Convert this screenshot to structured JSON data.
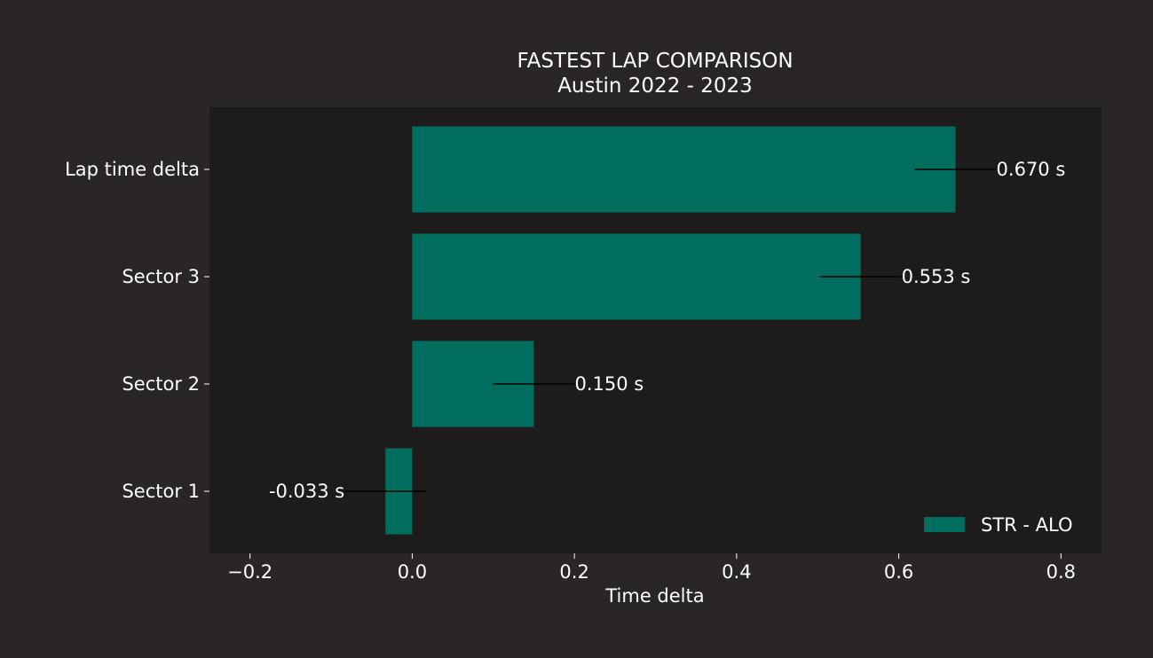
{
  "chart_data": {
    "type": "bar",
    "orientation": "horizontal",
    "title": "FASTEST LAP COMPARISON",
    "subtitle": "Austin 2022 - 2023",
    "xlabel": "Time delta",
    "ylabel": "",
    "categories": [
      "Sector 1",
      "Sector 2",
      "Sector 3",
      "Lap time delta"
    ],
    "series": [
      {
        "name": "STR - ALO",
        "values": [
          -0.033,
          0.15,
          0.553,
          0.67
        ],
        "labels": [
          "-0.033 s",
          "0.150 s",
          "0.553 s",
          "0.670 s"
        ]
      }
    ],
    "xlim": [
      -0.25,
      0.85
    ],
    "xticks": [
      -0.2,
      0.0,
      0.2,
      0.4,
      0.6,
      0.8
    ],
    "xtick_labels": [
      "−0.2",
      "0.0",
      "0.2",
      "0.4",
      "0.6",
      "0.8"
    ],
    "grid": false,
    "legend": "bottom-right",
    "colors": {
      "figure_bg": "#292625",
      "axes_bg": "#1e1c1b",
      "bar": "#006e5f",
      "text": "#ffffff",
      "leader_line": "#000000"
    }
  }
}
